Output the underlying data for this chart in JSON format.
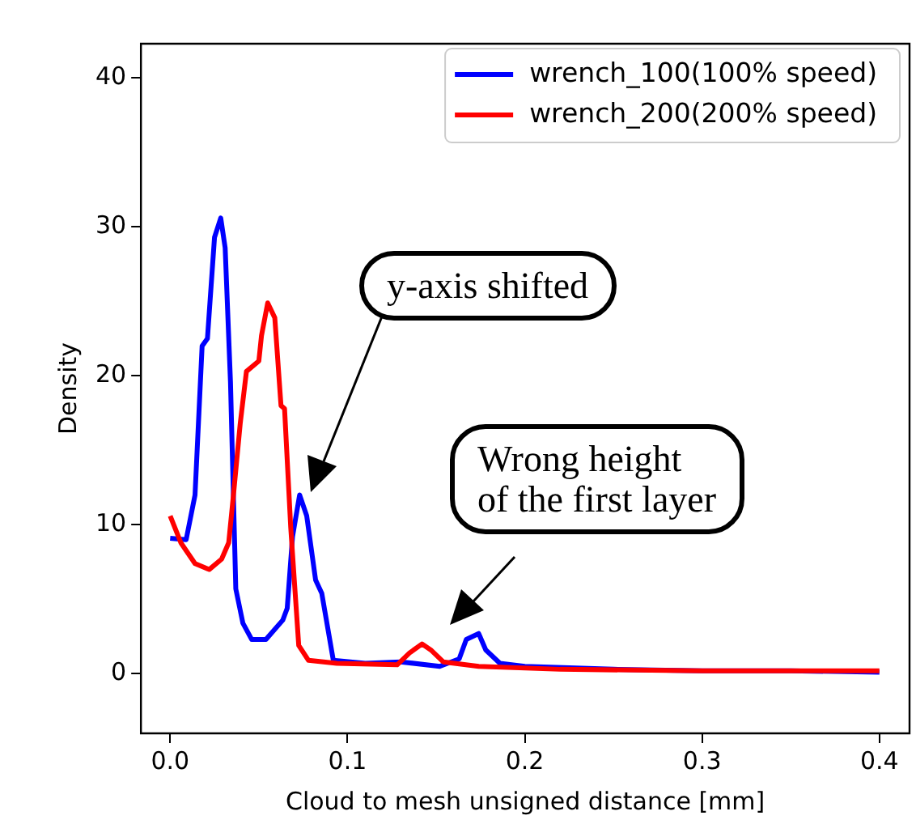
{
  "chart_data": {
    "type": "line",
    "xlabel": "Cloud to mesh unsigned distance [mm]",
    "ylabel": "Density",
    "xlim": [
      -0.0165,
      0.417
    ],
    "ylim": [
      -4.0,
      42.3
    ],
    "xticks": [
      {
        "value": 0,
        "label": "0.0"
      },
      0.1,
      0.2,
      0.3,
      0.4
    ],
    "yticks": [
      0,
      10,
      20,
      30,
      40
    ],
    "grid": false,
    "legend": "top right",
    "marker": "none",
    "line_style": "solid",
    "series": [
      {
        "name": "wrench_100(100% speed)",
        "color": "#0000ff",
        "x": [
          0,
          0.009,
          0.014,
          0.018,
          0.021,
          0.025,
          0.0285,
          0.031,
          0.034,
          0.037,
          0.041,
          0.046,
          0.054,
          0.0635,
          0.066,
          0.069,
          0.073,
          0.077,
          0.082,
          0.0855,
          0.092,
          0.11,
          0.13,
          0.152,
          0.163,
          0.167,
          0.174,
          0.178,
          0.186,
          0.2,
          0.25,
          0.3,
          0.35,
          0.4
        ],
        "values": [
          9.1,
          9.0,
          12,
          22,
          22.5,
          29.3,
          30.6,
          28.6,
          19.6,
          5.7,
          3.4,
          2.3,
          2.3,
          3.6,
          4.4,
          9.2,
          12,
          10.6,
          6.3,
          5.4,
          0.9,
          0.7,
          0.8,
          0.5,
          1.0,
          2.3,
          2.7,
          1.6,
          0.7,
          0.5,
          0.3,
          0.2,
          0.2,
          0.1
        ]
      },
      {
        "name": "wrench_200(200% speed)",
        "color": "#ff0000",
        "x": [
          0,
          0.006,
          0.014,
          0.022,
          0.029,
          0.033,
          0.036,
          0.0395,
          0.043,
          0.05,
          0.0515,
          0.055,
          0.059,
          0.0625,
          0.0645,
          0.068,
          0.0725,
          0.078,
          0.094,
          0.128,
          0.135,
          0.142,
          0.147,
          0.154,
          0.174,
          0.22,
          0.3,
          0.4
        ],
        "values": [
          10.6,
          8.8,
          7.4,
          7.0,
          7.7,
          8.8,
          12.4,
          16.8,
          20.3,
          21,
          22.7,
          24.9,
          23.9,
          18,
          17.8,
          9.8,
          1.9,
          0.9,
          0.7,
          0.6,
          1.4,
          2.0,
          1.6,
          0.8,
          0.5,
          0.3,
          0.2,
          0.2
        ]
      }
    ],
    "annotations": [
      "y-axis shifted",
      "Wrong height\nof the first layer"
    ]
  }
}
